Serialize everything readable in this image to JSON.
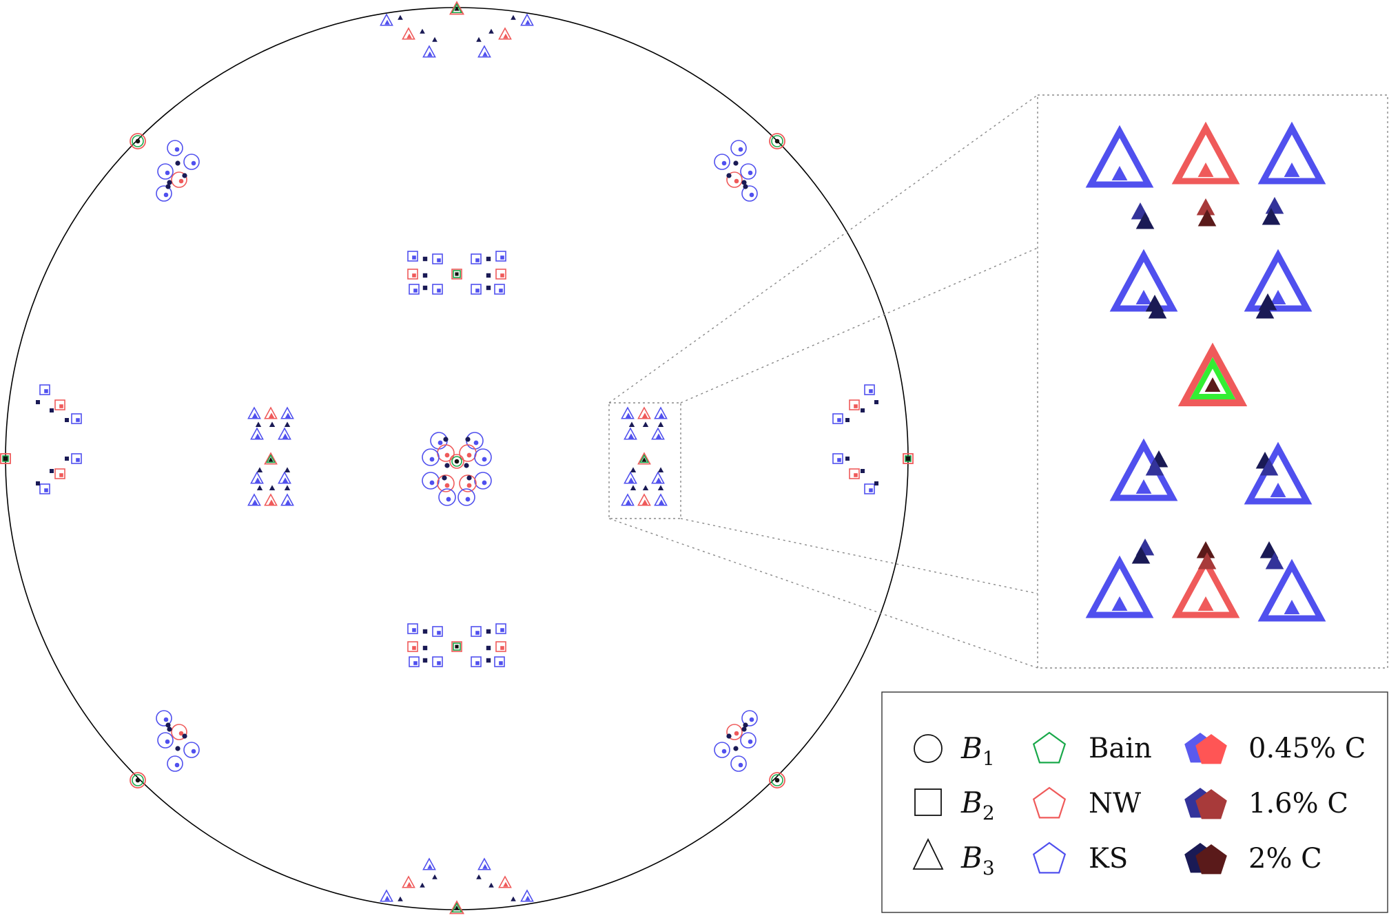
{
  "colors": {
    "bain": "#19a84a",
    "nw": "#ef5a5a",
    "ks": "#5050ee",
    "c045_ks": "#5a5aee",
    "c045_nw": "#ff5555",
    "c16_ks": "#33339a",
    "c16_nw": "#a83a3a",
    "c2_ks": "#1a1a55",
    "c2_nw": "#5a1a1a",
    "inset_center_outer": "#ef5a5a",
    "inset_center_inner": "#33ee33"
  },
  "legend": {
    "variants": [
      {
        "symbol": "circle-icon",
        "base": "B",
        "sub": "1"
      },
      {
        "symbol": "square-icon",
        "base": "B",
        "sub": "2"
      },
      {
        "symbol": "triangle-icon",
        "base": "B",
        "sub": "3"
      }
    ],
    "relations": [
      {
        "label": "Bain",
        "color": "#19a84a"
      },
      {
        "label": "NW",
        "color": "#ef5a5a"
      },
      {
        "label": "KS",
        "color": "#5050ee"
      }
    ],
    "carbon": [
      {
        "label": "0.45% C",
        "ks": "#5a5aee",
        "nw": "#ff5555"
      },
      {
        "label": "1.6% C",
        "ks": "#33339a",
        "nw": "#a83a3a"
      },
      {
        "label": "2% C",
        "ks": "#1a1a55",
        "nw": "#5a1a1a"
      }
    ]
  }
}
